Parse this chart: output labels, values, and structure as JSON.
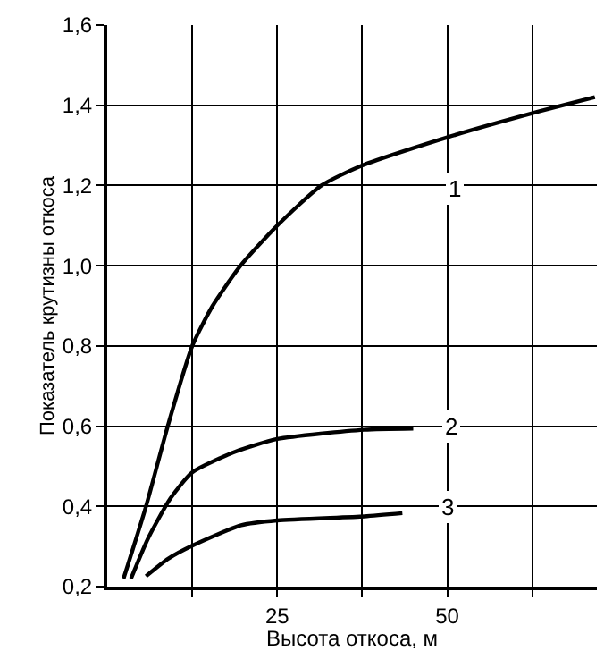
{
  "chart_data": {
    "type": "line",
    "xlabel": "Высота откоса, м",
    "ylabel": "Показатель крутизны откоса",
    "xlim": [
      0,
      72
    ],
    "ylim": [
      0.2,
      1.6
    ],
    "xticks": [
      {
        "value": 12.5,
        "label": null
      },
      25,
      {
        "value": 37.5,
        "label": null
      },
      50,
      {
        "value": 62.5,
        "label": null
      }
    ],
    "yticks": [
      {
        "value": 0.2,
        "label": "0,2"
      },
      {
        "value": 0.4,
        "label": "0,4"
      },
      {
        "value": 0.6,
        "label": "0,6"
      },
      {
        "value": 0.8,
        "label": "0,8"
      },
      {
        "value": 1.0,
        "label": "1,0"
      },
      {
        "value": 1.2,
        "label": "1,2"
      },
      {
        "value": 1.4,
        "label": "1,4"
      },
      {
        "value": 1.6,
        "label": "1,6"
      }
    ],
    "grid": true,
    "marker": "none",
    "line_style": "solid",
    "series": [
      {
        "color": "#000000",
        "x": [
          2.4,
          5.7,
          8.9,
          12.5,
          15.5,
          19.6,
          25,
          31.5,
          37.5,
          50,
          62.5,
          71.7
        ],
        "values": [
          0.22,
          0.4,
          0.6,
          0.8,
          0.9,
          1.0,
          1.1,
          1.2,
          1.25,
          1.32,
          1.38,
          1.42
        ]
      },
      {
        "color": "#000000",
        "x": [
          3.5,
          6,
          9.3,
          12.5,
          18.8,
          25,
          37.8,
          45
        ],
        "values": [
          0.22,
          0.32,
          0.42,
          0.485,
          0.536,
          0.568,
          0.591,
          0.594
        ]
      },
      {
        "color": "#000000",
        "x": [
          5.7,
          9,
          12.5,
          19.7,
          25,
          37.8,
          43.4
        ],
        "values": [
          0.226,
          0.27,
          0.302,
          0.353,
          0.365,
          0.375,
          0.383
        ]
      }
    ],
    "annotations": [
      {
        "text": "1",
        "x": 51,
        "y": 1.19
      },
      {
        "text": "2",
        "x": 50.5,
        "y": 0.6
      },
      {
        "text": "3",
        "x": 50,
        "y": 0.4
      }
    ]
  }
}
